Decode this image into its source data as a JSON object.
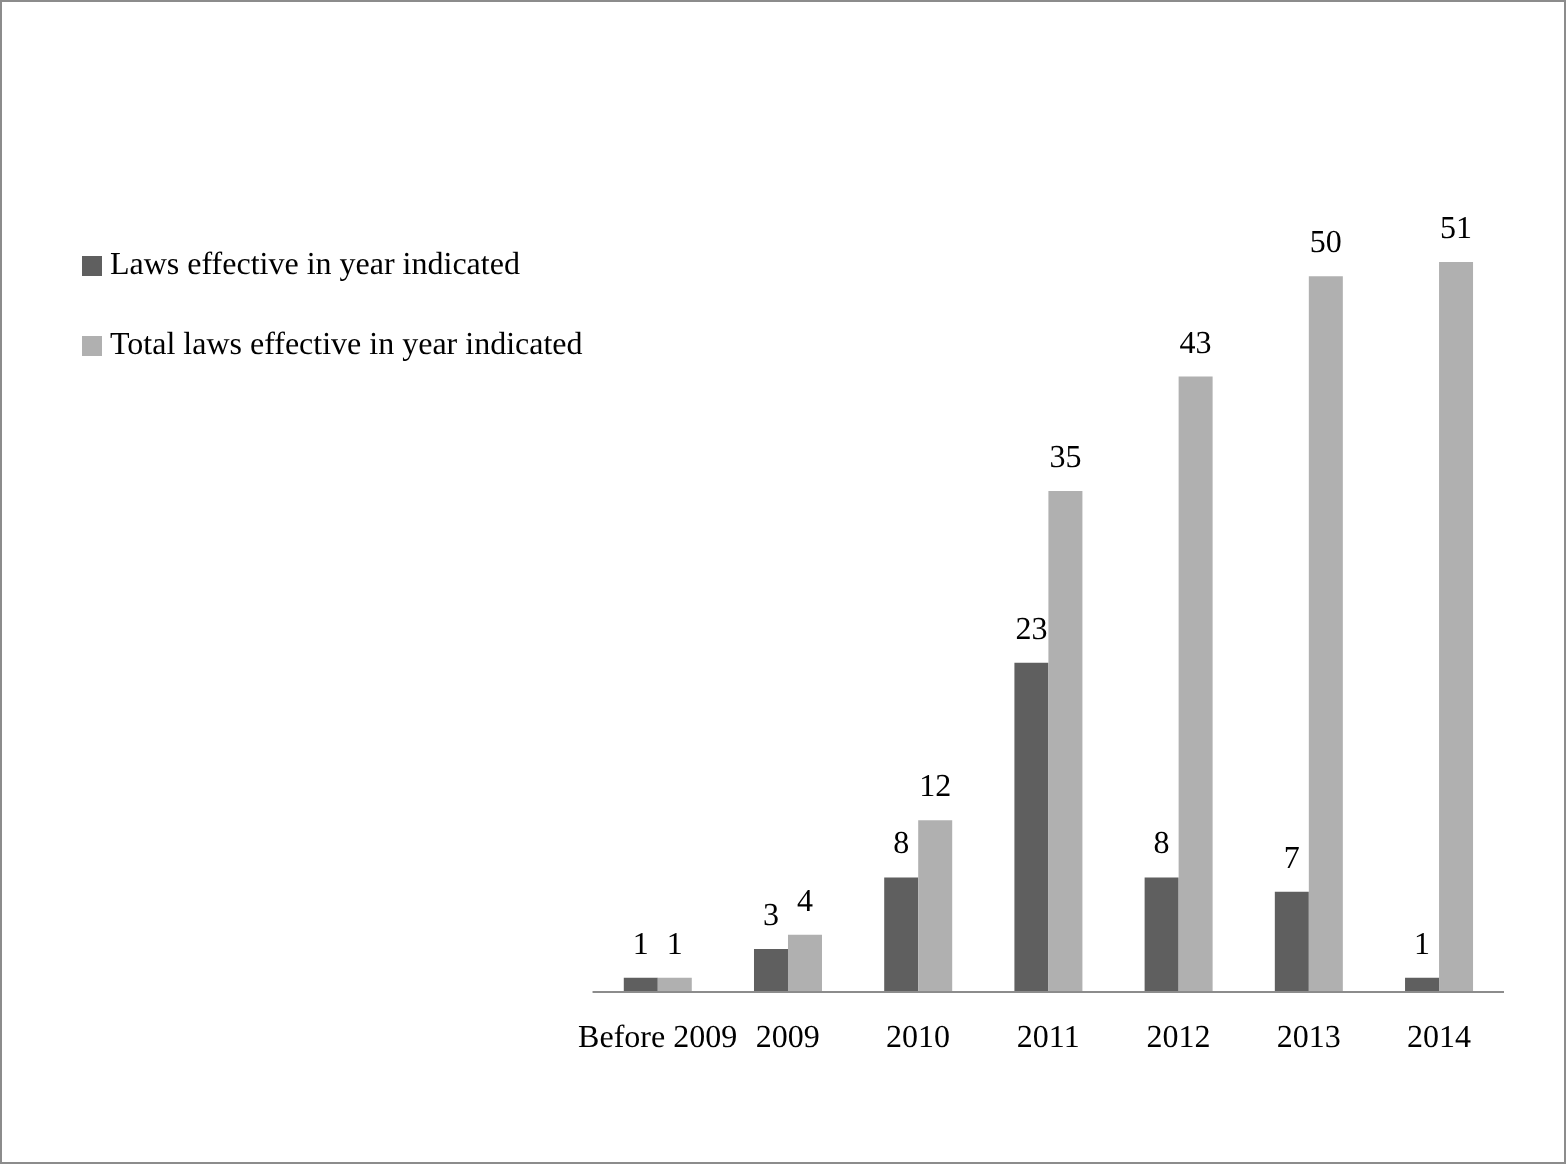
{
  "chart_data": {
    "type": "bar",
    "categories": [
      "Before 2009",
      "2009",
      "2010",
      "2011",
      "2012",
      "2013",
      "2014"
    ],
    "series": [
      {
        "name": "Laws effective in year indicated",
        "color": "#5f5f5f",
        "values": [
          1,
          3,
          8,
          23,
          8,
          7,
          1
        ]
      },
      {
        "name": "Total laws effective in year indicated",
        "color": "#b0b0b0",
        "values": [
          1,
          4,
          12,
          35,
          43,
          50,
          51
        ]
      }
    ],
    "data_labels": true,
    "legend": "top left",
    "grid": false
  }
}
